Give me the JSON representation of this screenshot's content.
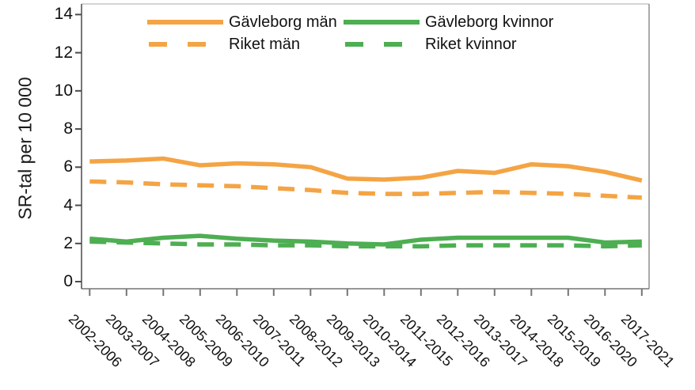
{
  "chart_data": {
    "type": "line",
    "title": "",
    "xlabel": "",
    "ylabel": "SR-tal per 10 000",
    "ylim": [
      0,
      14
    ],
    "yticks": [
      0,
      2,
      4,
      6,
      8,
      10,
      12,
      14
    ],
    "grid": false,
    "legend_position": "top-inside",
    "categories": [
      "2002-2006",
      "2003-2007",
      "2004-2008",
      "2005-2009",
      "2006-2010",
      "2007-2011",
      "2008-2012",
      "2009-2013",
      "2010-2014",
      "2011-2015",
      "2012-2016",
      "2013-2017",
      "2014-2018",
      "2015-2019",
      "2016-2020",
      "2017-2021"
    ],
    "series": [
      {
        "name": "Gävleborg män",
        "color": "#F4A445",
        "dashed": false,
        "values": [
          6.3,
          6.35,
          6.45,
          6.1,
          6.2,
          6.15,
          6.0,
          5.4,
          5.35,
          5.45,
          5.8,
          5.7,
          6.15,
          6.05,
          5.75,
          5.3
        ]
      },
      {
        "name": "Riket män",
        "color": "#F4A445",
        "dashed": true,
        "values": [
          5.25,
          5.2,
          5.1,
          5.05,
          5.0,
          4.9,
          4.8,
          4.65,
          4.6,
          4.6,
          4.65,
          4.7,
          4.65,
          4.6,
          4.5,
          4.4
        ]
      },
      {
        "name": "Gävleborg kvinnor",
        "color": "#4DAE52",
        "dashed": false,
        "values": [
          2.25,
          2.1,
          2.3,
          2.4,
          2.25,
          2.15,
          2.1,
          2.0,
          1.95,
          2.2,
          2.3,
          2.3,
          2.3,
          2.3,
          2.05,
          2.1
        ]
      },
      {
        "name": "Riket kvinnor",
        "color": "#4DAE52",
        "dashed": true,
        "values": [
          2.1,
          2.05,
          2.0,
          1.95,
          1.95,
          1.9,
          1.9,
          1.85,
          1.85,
          1.85,
          1.9,
          1.9,
          1.9,
          1.9,
          1.85,
          1.9
        ]
      }
    ],
    "legend_rows": [
      [
        "Gävleborg män",
        "Gävleborg kvinnor"
      ],
      [
        "Riket män",
        "Riket kvinnor"
      ]
    ]
  }
}
